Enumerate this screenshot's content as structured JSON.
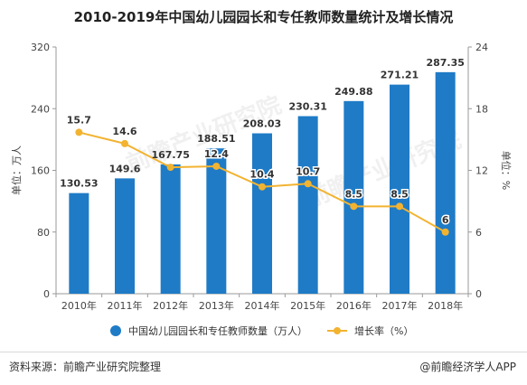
{
  "title": "2010-2019年中国幼儿园园长和专任教师数量统计及增长情况",
  "chart_data": {
    "type": "bar+line",
    "categories": [
      "2010年",
      "2011年",
      "2012年",
      "2013年",
      "2014年",
      "2015年",
      "2016年",
      "2017年",
      "2018年"
    ],
    "series": [
      {
        "name": "中国幼儿园园长和专任教师数量（万人）",
        "type": "bar",
        "axis": "left",
        "color": "#1f7bc6",
        "values": [
          130.53,
          149.6,
          167.75,
          188.51,
          208.03,
          230.31,
          249.88,
          271.21,
          287.35
        ],
        "labels": [
          "130.53",
          "149.6",
          "167.75",
          "188.51",
          "208.03",
          "230.31",
          "249.88",
          "271.21",
          "287.35"
        ]
      },
      {
        "name": "增长率（%）",
        "type": "line",
        "axis": "right",
        "color": "#f2b330",
        "values": [
          15.7,
          14.6,
          12.3,
          12.4,
          10.4,
          10.7,
          8.5,
          8.5,
          6
        ],
        "labels": [
          "15.7",
          "14.6",
          "",
          "12.4",
          "10.4",
          "10.7",
          "8.5",
          "8.5",
          "6"
        ]
      }
    ],
    "y_left": {
      "label": "单位：万人",
      "ylim": [
        0,
        320
      ],
      "ticks": [
        "0",
        "80",
        "160",
        "240",
        "320"
      ]
    },
    "y_right": {
      "label": "单位：%",
      "ylim": [
        0,
        24
      ],
      "ticks": [
        "0",
        "6",
        "12",
        "18",
        "24"
      ]
    },
    "grid": false,
    "legend": "bottom"
  },
  "footer": {
    "source": "资料来源：前瞻产业研究院整理",
    "credit": "@前瞻经济学人APP"
  },
  "watermark": "前瞻产业研究院"
}
